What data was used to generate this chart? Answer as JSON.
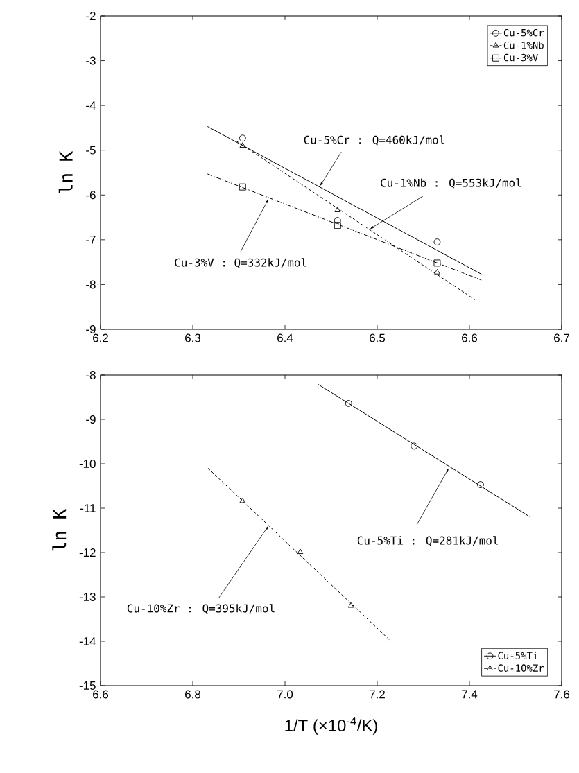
{
  "chart_data": [
    {
      "type": "scatter",
      "ylabel": "ln K",
      "xlim": [
        6.2,
        6.7
      ],
      "ylim": [
        -9,
        -2
      ],
      "xticks": [
        6.2,
        6.3,
        6.4,
        6.5,
        6.6,
        6.7
      ],
      "yticks": [
        -2,
        -3,
        -4,
        -5,
        -6,
        -7,
        -8,
        -9
      ],
      "grid": false,
      "legend": "top right",
      "series": [
        {
          "name": "Cu-5%Cr",
          "color": "#000000",
          "marker": "circle",
          "line_style": "solid",
          "x": [
            6.354,
            6.457,
            6.565
          ],
          "values": [
            -4.73,
            -6.57,
            -7.05
          ]
        },
        {
          "name": "Cu-1%Nb",
          "color": "#000000",
          "marker": "triangle",
          "line_style": "dashed",
          "x": [
            6.354,
            6.457,
            6.565
          ],
          "values": [
            -4.9,
            -6.34,
            -7.73
          ]
        },
        {
          "name": "Cu-3%V",
          "color": "#000000",
          "marker": "square",
          "line_style": "dashdot",
          "x": [
            6.354,
            6.457,
            6.565
          ],
          "values": [
            -5.82,
            -6.68,
            -7.52
          ]
        },
        {
          "type": "line",
          "color": "#000000",
          "line_style": "solid",
          "x": [
            6.316,
            6.613
          ],
          "values": [
            -4.47,
            -7.77
          ]
        },
        {
          "type": "line",
          "color": "#000000",
          "line_style": "dashed",
          "x": [
            6.347,
            6.606
          ],
          "values": [
            -4.79,
            -8.34
          ]
        },
        {
          "type": "line",
          "color": "#000000",
          "line_style": "dashdot",
          "x": [
            6.316,
            6.613
          ],
          "values": [
            -5.53,
            -7.9
          ]
        }
      ],
      "annotations": [
        {
          "text": "Cu-5%Cr : Q=460kJ/mol",
          "x": 6.438,
          "y": -5.8
        },
        {
          "text": "Cu-1%Nb : Q=553kJ/mol",
          "x": 6.492,
          "y": -6.76
        },
        {
          "text": "Cu-3%V : Q=332kJ/mol",
          "x": 6.382,
          "y": -6.09
        }
      ]
    },
    {
      "type": "scatter",
      "ylabel": "ln K",
      "xlabel": "1/T   (×10$^{-4}$/K)",
      "xlim": [
        6.6,
        7.6
      ],
      "ylim": [
        -15,
        -8
      ],
      "xticks": [
        6.6,
        6.8,
        {
          "value": 7,
          "label": "7.0"
        },
        7.2,
        7.4,
        7.6
      ],
      "yticks": [
        -8,
        -9,
        -10,
        -11,
        -12,
        -13,
        -14,
        -15
      ],
      "grid": false,
      "legend": "bottom right",
      "series": [
        {
          "name": "Cu-5%Ti",
          "color": "#000000",
          "marker": "circle",
          "line_style": "solid",
          "x": [
            7.138,
            7.28,
            7.424
          ],
          "values": [
            -8.64,
            -9.6,
            -10.47
          ]
        },
        {
          "name": "Cu-10%Zr",
          "color": "#000000",
          "marker": "triangle",
          "line_style": "dashed",
          "x": [
            6.908,
            7.033,
            7.143
          ],
          "values": [
            -10.84,
            -11.99,
            -13.2
          ]
        },
        {
          "type": "line",
          "color": "#000000",
          "line_style": "solid",
          "x": [
            7.072,
            7.53
          ],
          "values": [
            -8.21,
            -11.19
          ]
        },
        {
          "type": "line",
          "color": "#000000",
          "line_style": "dashed",
          "x": [
            6.833,
            7.23
          ],
          "values": [
            -10.1,
            -14.0
          ]
        }
      ],
      "annotations": [
        {
          "text": "Cu-5%Ti : Q=281kJ/mol",
          "x": 7.355,
          "y": -10.1
        },
        {
          "text": "Cu-10%Zr : Q=395kJ/mol",
          "x": 6.964,
          "y": -11.4
        }
      ]
    }
  ]
}
